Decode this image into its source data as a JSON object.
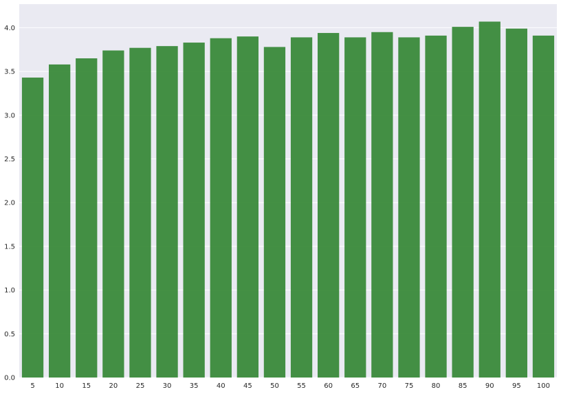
{
  "chart_data": {
    "type": "bar",
    "title": "",
    "xlabel": "",
    "ylabel": "",
    "categories": [
      "5",
      "10",
      "15",
      "20",
      "25",
      "30",
      "35",
      "40",
      "45",
      "50",
      "55",
      "60",
      "65",
      "70",
      "75",
      "80",
      "85",
      "90",
      "95",
      "100"
    ],
    "values": [
      3.43,
      3.58,
      3.65,
      3.74,
      3.77,
      3.79,
      3.83,
      3.88,
      3.9,
      3.78,
      3.89,
      3.94,
      3.89,
      3.95,
      3.89,
      3.91,
      4.01,
      4.07,
      3.99,
      3.91
    ],
    "ylim": [
      0,
      4.27
    ],
    "yticks": [
      "0.0",
      "0.5",
      "1.0",
      "1.5",
      "2.0",
      "2.5",
      "3.0",
      "3.5",
      "4.0"
    ],
    "grid": true,
    "legend": "none",
    "colors": {
      "bar": "#3a8a3a",
      "plot_background": "#eaeaf2",
      "grid": "#ffffff",
      "tick_text": "#262626"
    }
  }
}
